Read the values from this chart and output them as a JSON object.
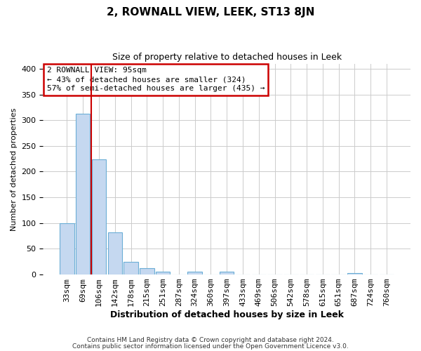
{
  "title": "2, ROWNALL VIEW, LEEK, ST13 8JN",
  "subtitle": "Size of property relative to detached houses in Leek",
  "xlabel": "Distribution of detached houses by size in Leek",
  "ylabel": "Number of detached properties",
  "bin_labels": [
    "33sqm",
    "69sqm",
    "106sqm",
    "142sqm",
    "178sqm",
    "215sqm",
    "251sqm",
    "287sqm",
    "324sqm",
    "360sqm",
    "397sqm",
    "433sqm",
    "469sqm",
    "506sqm",
    "542sqm",
    "578sqm",
    "615sqm",
    "651sqm",
    "687sqm",
    "724sqm",
    "760sqm"
  ],
  "bar_values": [
    100,
    313,
    224,
    82,
    25,
    12,
    5,
    0,
    5,
    0,
    5,
    0,
    0,
    0,
    0,
    0,
    0,
    0,
    3,
    0,
    0
  ],
  "bar_color": "#c5d8f0",
  "bar_edge_color": "#6baed6",
  "vline_x_idx": 2,
  "vline_color": "#cc0000",
  "annotation_title": "2 ROWNALL VIEW: 95sqm",
  "annotation_line1": "← 43% of detached houses are smaller (324)",
  "annotation_line2": "57% of semi-detached houses are larger (435) →",
  "annotation_box_color": "#ffffff",
  "annotation_box_edge": "#cc0000",
  "ylim": [
    0,
    410
  ],
  "yticks": [
    0,
    50,
    100,
    150,
    200,
    250,
    300,
    350,
    400
  ],
  "footer1": "Contains HM Land Registry data © Crown copyright and database right 2024.",
  "footer2": "Contains public sector information licensed under the Open Government Licence v3.0.",
  "background_color": "#ffffff",
  "grid_color": "#cccccc",
  "title_fontsize": 11,
  "subtitle_fontsize": 9,
  "ylabel_fontsize": 8,
  "xlabel_fontsize": 9,
  "tick_fontsize": 8,
  "footer_fontsize": 6.5
}
